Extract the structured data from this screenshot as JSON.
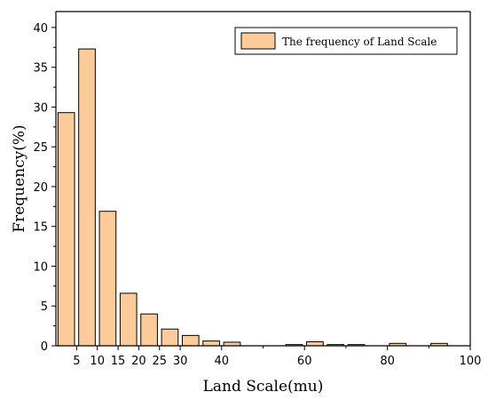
{
  "chart_data": {
    "type": "bar",
    "title": "",
    "xlabel": "Land Scale(mu)",
    "ylabel": "Frequency(%)",
    "xlim": [
      0,
      100
    ],
    "ylim": [
      0,
      42
    ],
    "x_ticks": [
      5,
      10,
      15,
      20,
      25,
      30,
      40,
      60,
      80,
      100
    ],
    "y_ticks": [
      0,
      5,
      10,
      15,
      20,
      25,
      30,
      35,
      40
    ],
    "grid": false,
    "legend_position": "top-right",
    "bar_color": "#FDCB97",
    "series": [
      {
        "name": "The frequency of Land Scale",
        "bars": [
          {
            "x_start": 0.5,
            "x_end": 4.5,
            "value": 29.3
          },
          {
            "x_start": 5.5,
            "x_end": 9.5,
            "value": 37.3
          },
          {
            "x_start": 10.5,
            "x_end": 14.5,
            "value": 16.9
          },
          {
            "x_start": 15.5,
            "x_end": 19.5,
            "value": 6.6
          },
          {
            "x_start": 20.5,
            "x_end": 24.5,
            "value": 4.0
          },
          {
            "x_start": 25.5,
            "x_end": 29.5,
            "value": 2.1
          },
          {
            "x_start": 30.5,
            "x_end": 34.5,
            "value": 1.3
          },
          {
            "x_start": 35.5,
            "x_end": 39.5,
            "value": 0.6
          },
          {
            "x_start": 40.5,
            "x_end": 44.5,
            "value": 0.45
          },
          {
            "x_start": 55.5,
            "x_end": 59.5,
            "value": 0.15
          },
          {
            "x_start": 60.5,
            "x_end": 64.5,
            "value": 0.5
          },
          {
            "x_start": 65.5,
            "x_end": 69.5,
            "value": 0.15
          },
          {
            "x_start": 70.5,
            "x_end": 74.5,
            "value": 0.15
          },
          {
            "x_start": 80.5,
            "x_end": 84.5,
            "value": 0.3
          },
          {
            "x_start": 90.5,
            "x_end": 94.5,
            "value": 0.3
          }
        ]
      }
    ]
  }
}
